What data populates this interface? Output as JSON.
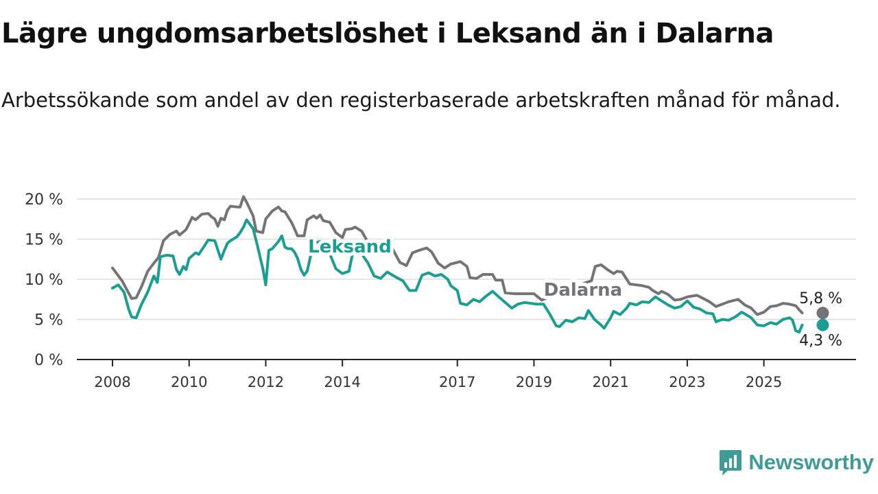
{
  "title": "Lägre ungdomsarbetslöshet i Leksand än i Dalarna",
  "subtitle": "Arbetssökande som andel av den registerbaserade arbetskraften månad för månad.",
  "brand": {
    "name": "Newsworthy",
    "color": "#3f9b96"
  },
  "chart_data": {
    "type": "line",
    "title": "Lägre ungdomsarbetslöshet i Leksand än i Dalarna",
    "subtitle": "Arbetssökande som andel av den registerbaserade arbetskraften månad för månad.",
    "xlabel": "",
    "ylabel": "",
    "ylim": [
      0,
      20
    ],
    "y_ticks": [
      0,
      5,
      10,
      15,
      20
    ],
    "y_tick_labels": [
      "0 %",
      "5 %",
      "10 %",
      "15 %",
      "20 %"
    ],
    "x_range": [
      2008,
      2026.4
    ],
    "x_ticks": [
      2008,
      2010,
      2012,
      2014,
      2017,
      2019,
      2021,
      2023,
      2025
    ],
    "x_tick_labels": [
      "2008",
      "2010",
      "2012",
      "2014",
      "2017",
      "2019",
      "2021",
      "2023",
      "2025"
    ],
    "grid": true,
    "series": [
      {
        "name": "Dalarna",
        "color": "#737378",
        "end_label": "5,8 %",
        "points": [
          [
            2008.0,
            11.4
          ],
          [
            2008.25,
            9.8
          ],
          [
            2008.42,
            8.3
          ],
          [
            2008.5,
            7.6
          ],
          [
            2008.62,
            7.7
          ],
          [
            2008.75,
            9.0
          ],
          [
            2008.92,
            11.0
          ],
          [
            2009.08,
            12.0
          ],
          [
            2009.2,
            12.7
          ],
          [
            2009.33,
            14.8
          ],
          [
            2009.5,
            15.6
          ],
          [
            2009.67,
            16.0
          ],
          [
            2009.75,
            15.5
          ],
          [
            2009.92,
            16.2
          ],
          [
            2010.08,
            17.7
          ],
          [
            2010.17,
            17.4
          ],
          [
            2010.33,
            18.1
          ],
          [
            2010.5,
            18.2
          ],
          [
            2010.58,
            17.8
          ],
          [
            2010.67,
            17.5
          ],
          [
            2010.75,
            16.6
          ],
          [
            2010.83,
            17.6
          ],
          [
            2010.92,
            17.4
          ],
          [
            2011.0,
            18.6
          ],
          [
            2011.08,
            19.1
          ],
          [
            2011.25,
            19.0
          ],
          [
            2011.33,
            19.0
          ],
          [
            2011.42,
            20.3
          ],
          [
            2011.5,
            19.6
          ],
          [
            2011.67,
            17.9
          ],
          [
            2011.75,
            16.0
          ],
          [
            2011.92,
            15.8
          ],
          [
            2012.0,
            17.5
          ],
          [
            2012.17,
            18.5
          ],
          [
            2012.33,
            19.0
          ],
          [
            2012.42,
            18.5
          ],
          [
            2012.5,
            18.4
          ],
          [
            2012.67,
            17.1
          ],
          [
            2012.75,
            16.3
          ],
          [
            2012.83,
            15.4
          ],
          [
            2013.0,
            15.4
          ],
          [
            2013.08,
            17.4
          ],
          [
            2013.25,
            17.9
          ],
          [
            2013.33,
            17.6
          ],
          [
            2013.42,
            18.0
          ],
          [
            2013.5,
            17.3
          ],
          [
            2013.67,
            17.1
          ],
          [
            2013.83,
            15.8
          ],
          [
            2014.0,
            15.2
          ],
          [
            2014.08,
            16.2
          ],
          [
            2014.25,
            16.3
          ],
          [
            2014.33,
            16.5
          ],
          [
            2014.5,
            16.0
          ],
          [
            2014.67,
            14.6
          ],
          [
            2014.83,
            13.3
          ],
          [
            2015.0,
            14.5
          ],
          [
            2015.25,
            14.3
          ],
          [
            2015.5,
            12.1
          ],
          [
            2015.67,
            11.7
          ],
          [
            2015.83,
            13.3
          ],
          [
            2016.0,
            13.6
          ],
          [
            2016.2,
            13.9
          ],
          [
            2016.33,
            13.4
          ],
          [
            2016.5,
            12.0
          ],
          [
            2016.67,
            11.4
          ],
          [
            2016.83,
            11.9
          ],
          [
            2017.08,
            12.2
          ],
          [
            2017.25,
            11.6
          ],
          [
            2017.33,
            10.2
          ],
          [
            2017.5,
            10.1
          ],
          [
            2017.67,
            10.6
          ],
          [
            2017.92,
            10.6
          ],
          [
            2018.0,
            9.9
          ],
          [
            2018.17,
            9.9
          ],
          [
            2018.25,
            8.3
          ],
          [
            2018.5,
            8.2
          ],
          [
            2019.0,
            8.2
          ],
          [
            2019.2,
            7.4
          ],
          [
            2019.5,
            8.0
          ],
          [
            2019.7,
            9.4
          ],
          [
            2020.0,
            9.0
          ],
          [
            2020.3,
            9.5
          ],
          [
            2020.5,
            9.8
          ],
          [
            2020.6,
            11.6
          ],
          [
            2020.75,
            11.8
          ],
          [
            2020.92,
            11.2
          ],
          [
            2021.08,
            10.7
          ],
          [
            2021.17,
            11.0
          ],
          [
            2021.3,
            10.9
          ],
          [
            2021.5,
            9.4
          ],
          [
            2021.67,
            9.3
          ],
          [
            2021.83,
            9.2
          ],
          [
            2022.0,
            9.0
          ],
          [
            2022.1,
            8.6
          ],
          [
            2022.25,
            8.2
          ],
          [
            2022.33,
            8.5
          ],
          [
            2022.5,
            8.1
          ],
          [
            2022.67,
            7.4
          ],
          [
            2022.83,
            7.5
          ],
          [
            2023.0,
            7.8
          ],
          [
            2023.25,
            8.0
          ],
          [
            2023.42,
            7.6
          ],
          [
            2023.58,
            7.2
          ],
          [
            2023.75,
            6.6
          ],
          [
            2023.92,
            6.9
          ],
          [
            2024.08,
            7.2
          ],
          [
            2024.25,
            7.4
          ],
          [
            2024.33,
            7.5
          ],
          [
            2024.5,
            6.8
          ],
          [
            2024.67,
            6.4
          ],
          [
            2024.83,
            5.6
          ],
          [
            2025.0,
            5.9
          ],
          [
            2025.17,
            6.6
          ],
          [
            2025.33,
            6.7
          ],
          [
            2025.5,
            7.0
          ],
          [
            2025.67,
            6.9
          ],
          [
            2025.83,
            6.7
          ],
          [
            2025.92,
            6.2
          ],
          [
            2026.0,
            5.8
          ]
        ]
      },
      {
        "name": "Leksand",
        "color": "#1a9e92",
        "end_label": "4,3 %",
        "points": [
          [
            2008.0,
            8.9
          ],
          [
            2008.15,
            9.3
          ],
          [
            2008.3,
            8.4
          ],
          [
            2008.42,
            6.3
          ],
          [
            2008.5,
            5.3
          ],
          [
            2008.62,
            5.2
          ],
          [
            2008.75,
            6.8
          ],
          [
            2008.92,
            8.4
          ],
          [
            2009.08,
            10.4
          ],
          [
            2009.17,
            9.6
          ],
          [
            2009.25,
            12.8
          ],
          [
            2009.42,
            13.0
          ],
          [
            2009.58,
            12.9
          ],
          [
            2009.67,
            11.2
          ],
          [
            2009.75,
            10.6
          ],
          [
            2009.85,
            11.6
          ],
          [
            2009.92,
            11.2
          ],
          [
            2010.0,
            12.6
          ],
          [
            2010.17,
            13.3
          ],
          [
            2010.25,
            13.1
          ],
          [
            2010.42,
            14.3
          ],
          [
            2010.5,
            14.9
          ],
          [
            2010.67,
            14.8
          ],
          [
            2010.83,
            12.5
          ],
          [
            2010.92,
            13.6
          ],
          [
            2011.0,
            14.5
          ],
          [
            2011.08,
            14.8
          ],
          [
            2011.25,
            15.3
          ],
          [
            2011.33,
            15.8
          ],
          [
            2011.42,
            16.5
          ],
          [
            2011.5,
            17.4
          ],
          [
            2011.67,
            16.3
          ],
          [
            2011.75,
            14.8
          ],
          [
            2011.92,
            11.4
          ],
          [
            2012.0,
            9.3
          ],
          [
            2012.08,
            13.6
          ],
          [
            2012.17,
            13.8
          ],
          [
            2012.33,
            14.7
          ],
          [
            2012.42,
            15.4
          ],
          [
            2012.5,
            14.0
          ],
          [
            2012.58,
            13.8
          ],
          [
            2012.67,
            13.8
          ],
          [
            2012.75,
            13.4
          ],
          [
            2012.83,
            12.6
          ],
          [
            2012.92,
            11.2
          ],
          [
            2013.0,
            10.5
          ],
          [
            2013.08,
            11.0
          ],
          [
            2013.17,
            12.9
          ],
          [
            2013.25,
            14.5
          ],
          [
            2013.42,
            14.7
          ],
          [
            2013.5,
            14.3
          ],
          [
            2013.67,
            13.2
          ],
          [
            2013.83,
            11.3
          ],
          [
            2014.0,
            10.7
          ],
          [
            2014.17,
            11.0
          ],
          [
            2014.25,
            12.8
          ],
          [
            2014.33,
            14.4
          ],
          [
            2014.5,
            13.2
          ],
          [
            2014.67,
            12.0
          ],
          [
            2014.83,
            10.4
          ],
          [
            2015.0,
            10.1
          ],
          [
            2015.17,
            10.9
          ],
          [
            2015.42,
            10.2
          ],
          [
            2015.58,
            9.8
          ],
          [
            2015.75,
            8.6
          ],
          [
            2015.92,
            8.6
          ],
          [
            2016.08,
            10.5
          ],
          [
            2016.25,
            10.8
          ],
          [
            2016.42,
            10.4
          ],
          [
            2016.58,
            10.6
          ],
          [
            2016.75,
            10.0
          ],
          [
            2016.83,
            9.2
          ],
          [
            2017.0,
            8.6
          ],
          [
            2017.08,
            7.0
          ],
          [
            2017.25,
            6.8
          ],
          [
            2017.42,
            7.5
          ],
          [
            2017.58,
            7.2
          ],
          [
            2017.75,
            7.9
          ],
          [
            2017.92,
            8.5
          ],
          [
            2018.08,
            7.8
          ],
          [
            2018.25,
            7.1
          ],
          [
            2018.42,
            6.4
          ],
          [
            2018.58,
            6.9
          ],
          [
            2018.75,
            7.1
          ],
          [
            2018.92,
            7.0
          ],
          [
            2019.08,
            6.9
          ],
          [
            2019.25,
            6.9
          ],
          [
            2019.42,
            5.6
          ],
          [
            2019.58,
            4.2
          ],
          [
            2019.67,
            4.1
          ],
          [
            2019.83,
            4.9
          ],
          [
            2020.0,
            4.7
          ],
          [
            2020.17,
            5.2
          ],
          [
            2020.33,
            5.1
          ],
          [
            2020.42,
            6.1
          ],
          [
            2020.58,
            5.0
          ],
          [
            2020.75,
            4.3
          ],
          [
            2020.83,
            3.9
          ],
          [
            2021.0,
            5.2
          ],
          [
            2021.08,
            6.0
          ],
          [
            2021.25,
            5.6
          ],
          [
            2021.42,
            6.4
          ],
          [
            2021.5,
            7.0
          ],
          [
            2021.67,
            6.8
          ],
          [
            2021.83,
            7.2
          ],
          [
            2022.0,
            7.1
          ],
          [
            2022.17,
            7.8
          ],
          [
            2022.33,
            7.3
          ],
          [
            2022.5,
            6.8
          ],
          [
            2022.67,
            6.4
          ],
          [
            2022.83,
            6.6
          ],
          [
            2023.0,
            7.3
          ],
          [
            2023.17,
            6.5
          ],
          [
            2023.33,
            6.3
          ],
          [
            2023.5,
            5.8
          ],
          [
            2023.67,
            5.7
          ],
          [
            2023.75,
            4.7
          ],
          [
            2023.92,
            5.0
          ],
          [
            2024.08,
            4.9
          ],
          [
            2024.25,
            5.3
          ],
          [
            2024.42,
            5.9
          ],
          [
            2024.5,
            5.7
          ],
          [
            2024.67,
            5.2
          ],
          [
            2024.83,
            4.3
          ],
          [
            2025.0,
            4.2
          ],
          [
            2025.17,
            4.6
          ],
          [
            2025.33,
            4.4
          ],
          [
            2025.5,
            5.0
          ],
          [
            2025.67,
            5.2
          ],
          [
            2025.75,
            4.9
          ],
          [
            2025.83,
            3.6
          ],
          [
            2025.92,
            3.4
          ],
          [
            2026.0,
            4.3
          ]
        ]
      }
    ]
  }
}
